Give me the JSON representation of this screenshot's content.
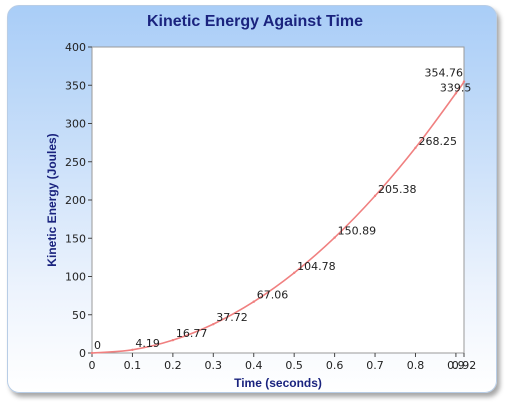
{
  "chart_data": {
    "type": "line",
    "title": "Kinetic Energy Against Time",
    "xlabel": "Time (seconds)",
    "ylabel": "Kinetic Energy (Joules)",
    "xlim": [
      0,
      0.92
    ],
    "ylim": [
      0,
      400
    ],
    "x_ticks": [
      "0",
      "0.1",
      "0.2",
      "0.3",
      "0.4",
      "0.5",
      "0.6",
      "0.7",
      "0.8",
      "0.9",
      "0.92"
    ],
    "y_ticks": [
      "0",
      "50",
      "100",
      "150",
      "200",
      "250",
      "300",
      "350",
      "400"
    ],
    "grid": false,
    "series": [
      {
        "color": "#f08080",
        "points": [
          {
            "x": 0,
            "y": 0,
            "label": "0"
          },
          {
            "x": 0.1,
            "y": 4.19,
            "label": "4.19"
          },
          {
            "x": 0.2,
            "y": 16.77,
            "label": "16.77"
          },
          {
            "x": 0.3,
            "y": 37.72,
            "label": "37.72"
          },
          {
            "x": 0.4,
            "y": 67.06,
            "label": "67.06"
          },
          {
            "x": 0.5,
            "y": 104.78,
            "label": "104.78"
          },
          {
            "x": 0.6,
            "y": 150.89,
            "label": "150.89"
          },
          {
            "x": 0.7,
            "y": 205.38,
            "label": "205.38"
          },
          {
            "x": 0.8,
            "y": 268.25,
            "label": "268.25"
          },
          {
            "x": 0.9,
            "y": 339.5,
            "label": "339.5"
          },
          {
            "x": 0.92,
            "y": 354.76,
            "label": "354.76"
          }
        ]
      }
    ]
  }
}
